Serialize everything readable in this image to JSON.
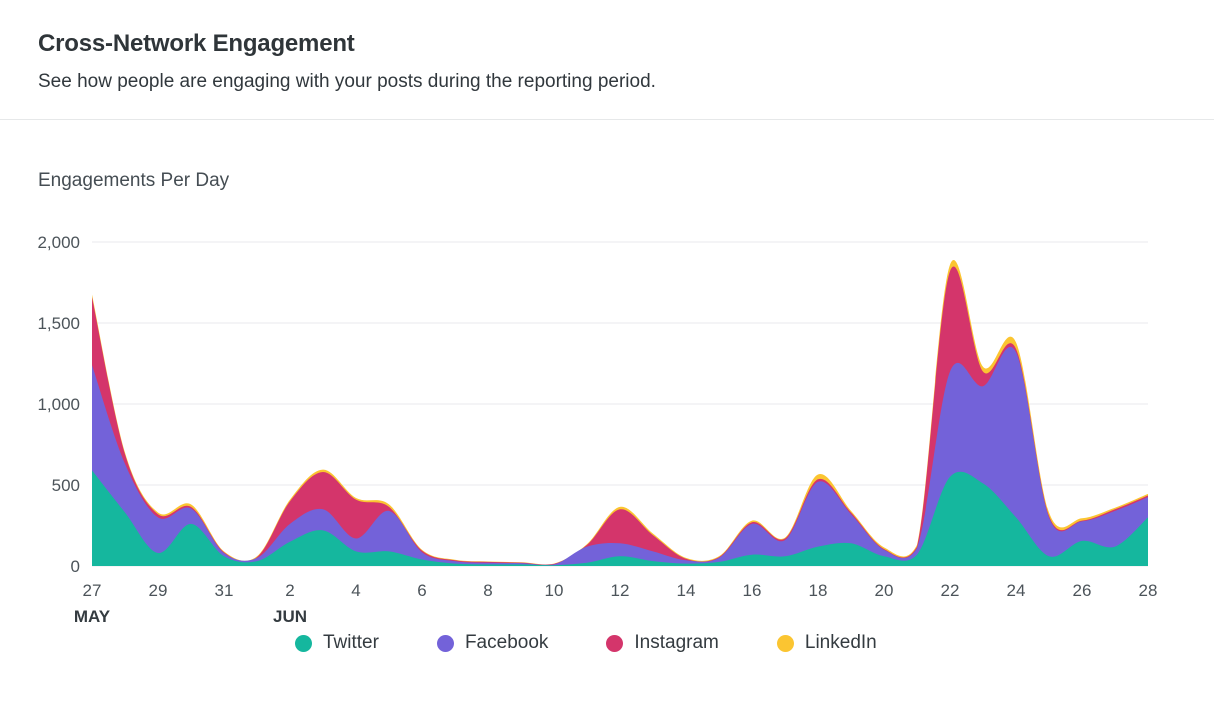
{
  "header": {
    "title": "Cross-Network Engagement",
    "subtitle": "See how people are engaging with your posts during the reporting period."
  },
  "chart_data": {
    "type": "area",
    "stacked": true,
    "title": "Engagements Per Day",
    "legend_position": "bottom",
    "grid": true,
    "ylim": [
      0,
      2000
    ],
    "y_ticks": [
      "0",
      "500",
      "1,000",
      "1,500",
      "2,000"
    ],
    "y_tick_values": [
      0,
      500,
      1000,
      1500,
      2000
    ],
    "x": [
      "May 27",
      "May 28",
      "May 29",
      "May 30",
      "May 31",
      "Jun 1",
      "Jun 2",
      "Jun 3",
      "Jun 4",
      "Jun 5",
      "Jun 6",
      "Jun 7",
      "Jun 8",
      "Jun 9",
      "Jun 10",
      "Jun 11",
      "Jun 12",
      "Jun 13",
      "Jun 14",
      "Jun 15",
      "Jun 16",
      "Jun 17",
      "Jun 18",
      "Jun 19",
      "Jun 20",
      "Jun 21",
      "Jun 22",
      "Jun 23",
      "Jun 24",
      "Jun 25",
      "Jun 26",
      "Jun 27",
      "Jun 28"
    ],
    "x_tick_indices": [
      0,
      2,
      4,
      6,
      8,
      10,
      12,
      14,
      16,
      18,
      20,
      22,
      24,
      26,
      28,
      30,
      32
    ],
    "x_tick_labels": [
      "27",
      "29",
      "31",
      "2",
      "4",
      "6",
      "8",
      "10",
      "12",
      "14",
      "16",
      "18",
      "20",
      "22",
      "24",
      "26",
      "28"
    ],
    "month_labels": [
      {
        "label": "MAY",
        "index": 0
      },
      {
        "label": "JUN",
        "index": 6
      }
    ],
    "series": [
      {
        "name": "Twitter",
        "color": "#15b79e",
        "values": [
          590,
          330,
          80,
          260,
          60,
          30,
          150,
          220,
          90,
          90,
          40,
          15,
          10,
          10,
          5,
          20,
          60,
          30,
          15,
          25,
          70,
          60,
          120,
          140,
          60,
          70,
          550,
          510,
          300,
          60,
          155,
          120,
          300
        ]
      },
      {
        "name": "Facebook",
        "color": "#7362d9",
        "values": [
          650,
          300,
          220,
          95,
          20,
          20,
          110,
          130,
          80,
          250,
          45,
          15,
          10,
          8,
          5,
          100,
          80,
          60,
          20,
          25,
          190,
          100,
          400,
          180,
          40,
          40,
          650,
          600,
          1020,
          240,
          120,
          220,
          125
        ]
      },
      {
        "name": "Instagram",
        "color": "#d4356b",
        "values": [
          420,
          60,
          20,
          10,
          5,
          5,
          140,
          230,
          240,
          25,
          10,
          5,
          5,
          3,
          3,
          10,
          210,
          100,
          10,
          5,
          10,
          10,
          15,
          10,
          5,
          10,
          620,
          90,
          20,
          10,
          5,
          10,
          10
        ]
      },
      {
        "name": "LinkedIn",
        "color": "#fbc531",
        "values": [
          15,
          10,
          10,
          15,
          5,
          5,
          10,
          15,
          10,
          15,
          5,
          3,
          3,
          2,
          2,
          5,
          15,
          10,
          5,
          5,
          10,
          5,
          30,
          10,
          10,
          10,
          40,
          30,
          40,
          20,
          15,
          10,
          10
        ]
      }
    ]
  },
  "colors": {
    "gridline": "#e8eaec",
    "axis_text": "#4c545a"
  }
}
